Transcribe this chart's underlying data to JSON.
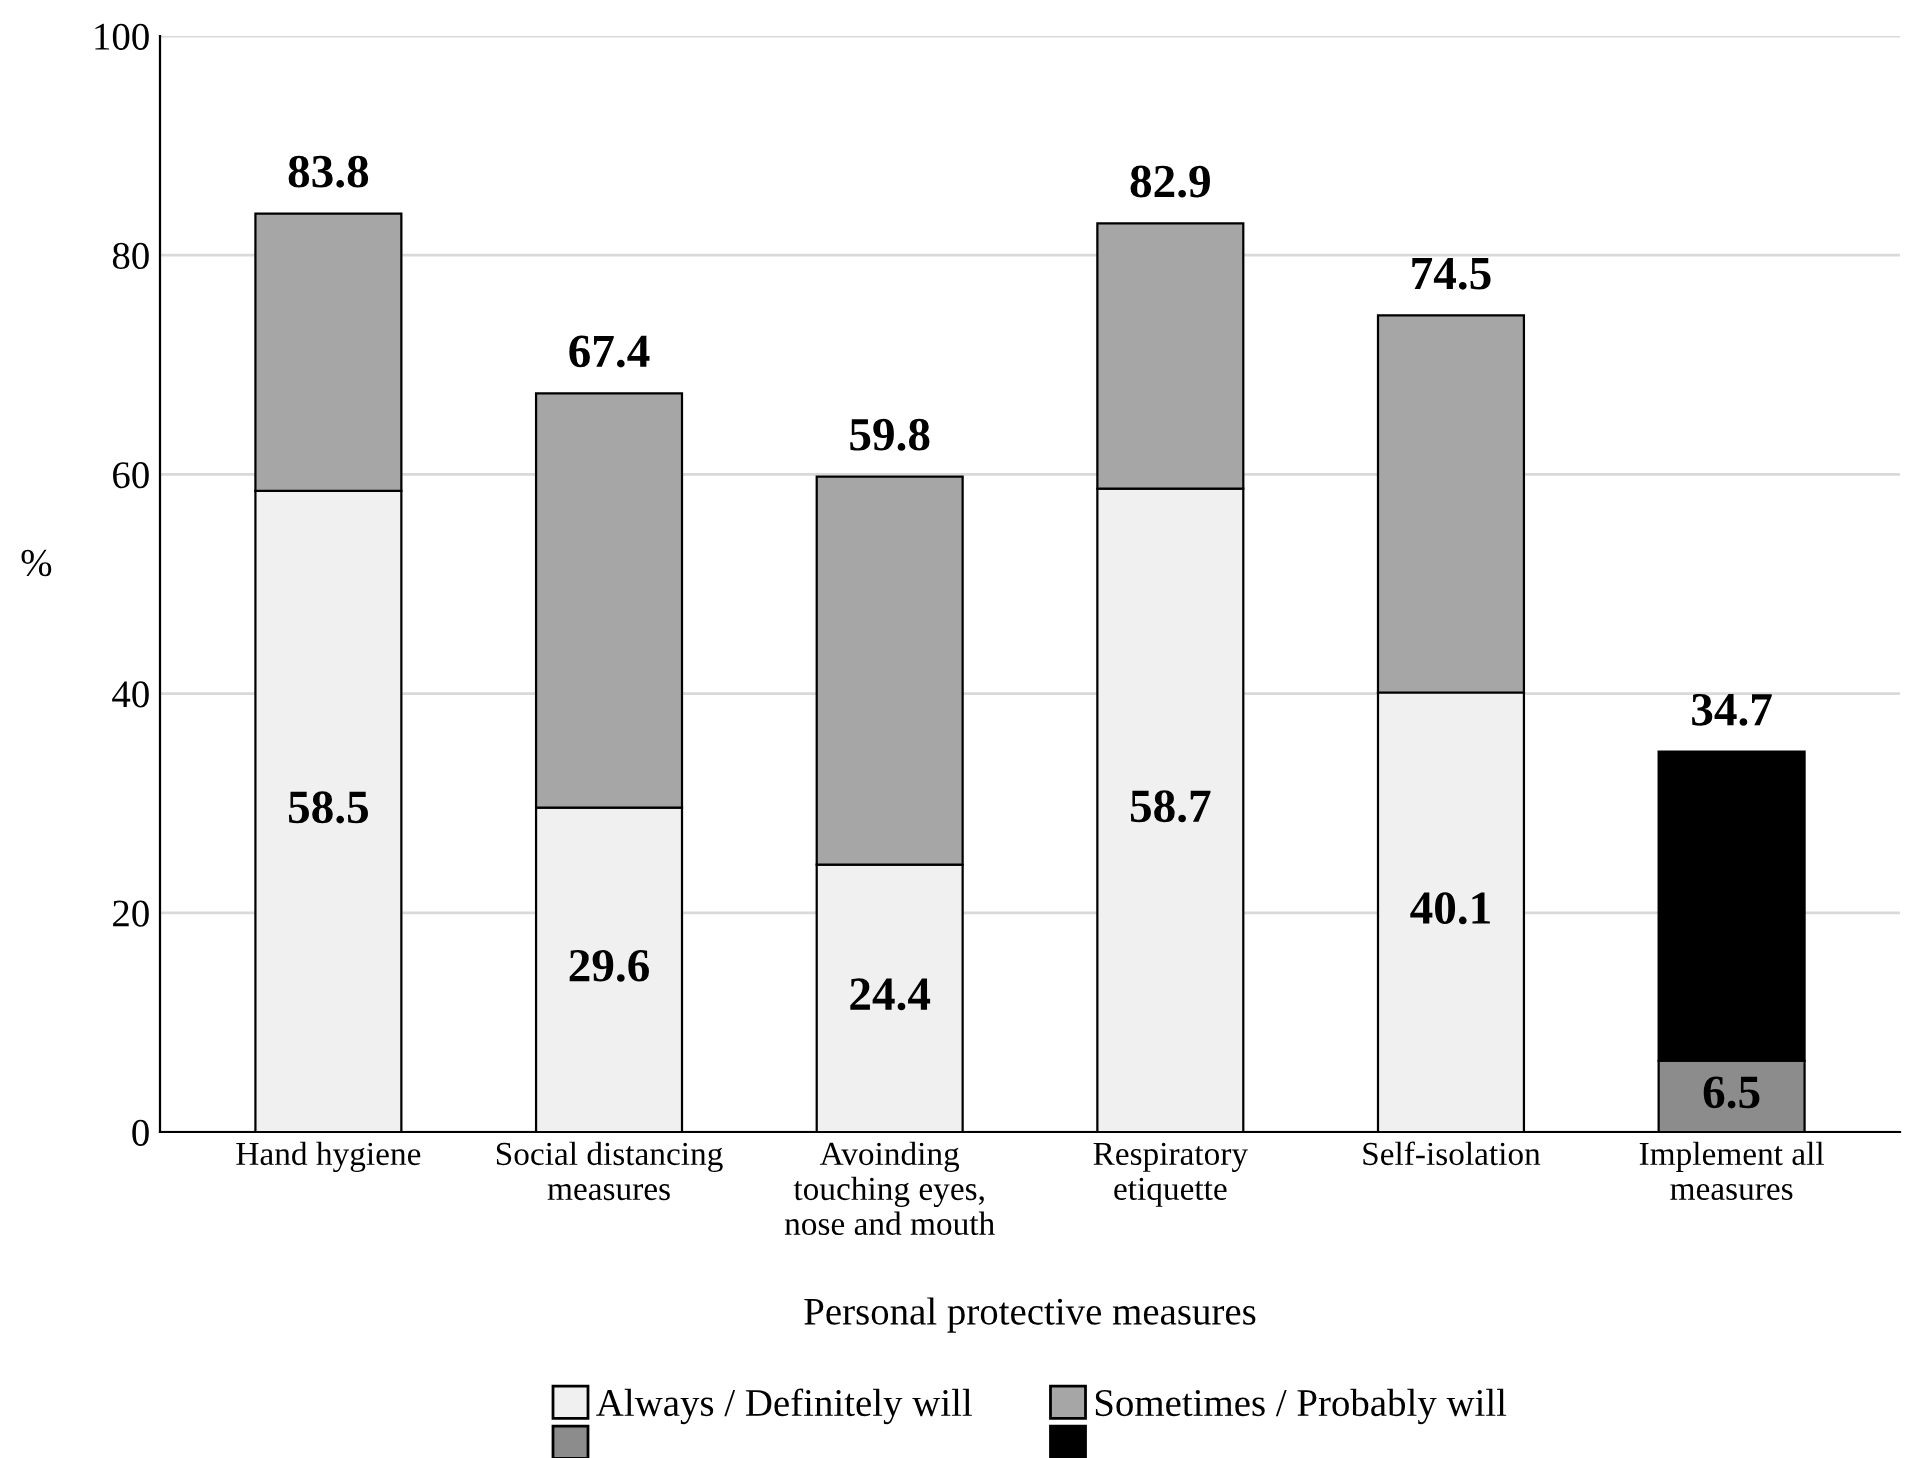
{
  "chart_data": {
    "type": "bar",
    "stacked": true,
    "xlabel": "Personal protective measures",
    "ylabel": "%",
    "categories": [
      "Hand hygiene",
      "Social distancing\nmeasures",
      "Avoinding\ntouching eyes,\nnose and mouth",
      "Respiratory\netiquette",
      "Self-isolation",
      "Implement all\nmeasures"
    ],
    "series": [
      {
        "name": "Always / Definitely will",
        "color": "#f0f0f0",
        "colors": [
          "#f0f0f0",
          "#f0f0f0",
          "#f0f0f0",
          "#f0f0f0",
          "#f0f0f0",
          "#8c8c8c"
        ],
        "values": [
          58.5,
          29.6,
          24.4,
          58.7,
          40.1,
          6.5
        ],
        "value_labels": [
          "58.5",
          "29.6",
          "24.4",
          "58.7",
          "40.1",
          "6.5"
        ]
      },
      {
        "name": "Sometimes / Probably will",
        "color": "#a6a6a6",
        "colors": [
          "#a6a6a6",
          "#a6a6a6",
          "#a6a6a6",
          "#a6a6a6",
          "#a6a6a6",
          "#000000"
        ],
        "values": [
          25.3,
          37.8,
          35.4,
          24.2,
          34.4,
          28.2
        ]
      }
    ],
    "totals": [
      "83.8",
      "67.4",
      "59.8",
      "82.9",
      "74.5",
      "34.7"
    ],
    "ylim": [
      0,
      100
    ],
    "yticks": [
      0,
      20,
      40,
      60,
      80,
      100
    ],
    "grid": "y",
    "legend": "bottom"
  }
}
